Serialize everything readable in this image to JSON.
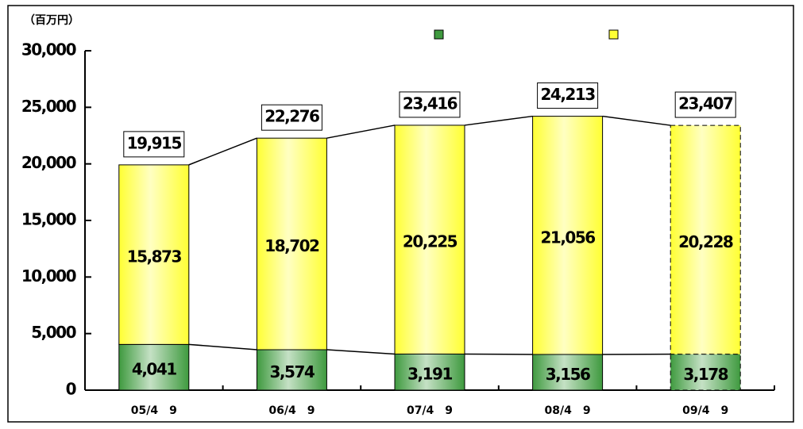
{
  "chart_data": {
    "type": "stacked_bar",
    "y_axis_label": "（百万円）",
    "categories": [
      "05/4　9",
      "06/4　9",
      "07/4　9",
      "08/4　9",
      "09/4　9"
    ],
    "series": [
      {
        "color": "#3f9a3f",
        "values": [
          4041,
          3574,
          3191,
          3156,
          3178
        ],
        "value_labels": [
          "4,041",
          "3,574",
          "3,191",
          "3,156",
          "3,178"
        ]
      },
      {
        "color": "#ffff33",
        "values": [
          15873,
          18702,
          20225,
          21056,
          20228
        ],
        "value_labels": [
          "15,873",
          "18,702",
          "20,225",
          "21,056",
          "20,228"
        ]
      }
    ],
    "totals": [
      19915,
      22276,
      23416,
      24213,
      23407
    ],
    "total_labels": [
      "19,915",
      "22,276",
      "23,416",
      "24,213",
      "23,407"
    ],
    "ylim": [
      0,
      30000
    ],
    "yticks": [
      0,
      {
        "value": 5000,
        "label": "5,000"
      },
      {
        "value": 10000,
        "label": "10,000"
      },
      {
        "value": 15000,
        "label": "15,000"
      },
      {
        "value": 20000,
        "label": "20,000"
      },
      {
        "value": 25000,
        "label": "25,000"
      },
      {
        "value": 30000,
        "label": "30,000"
      }
    ]
  }
}
